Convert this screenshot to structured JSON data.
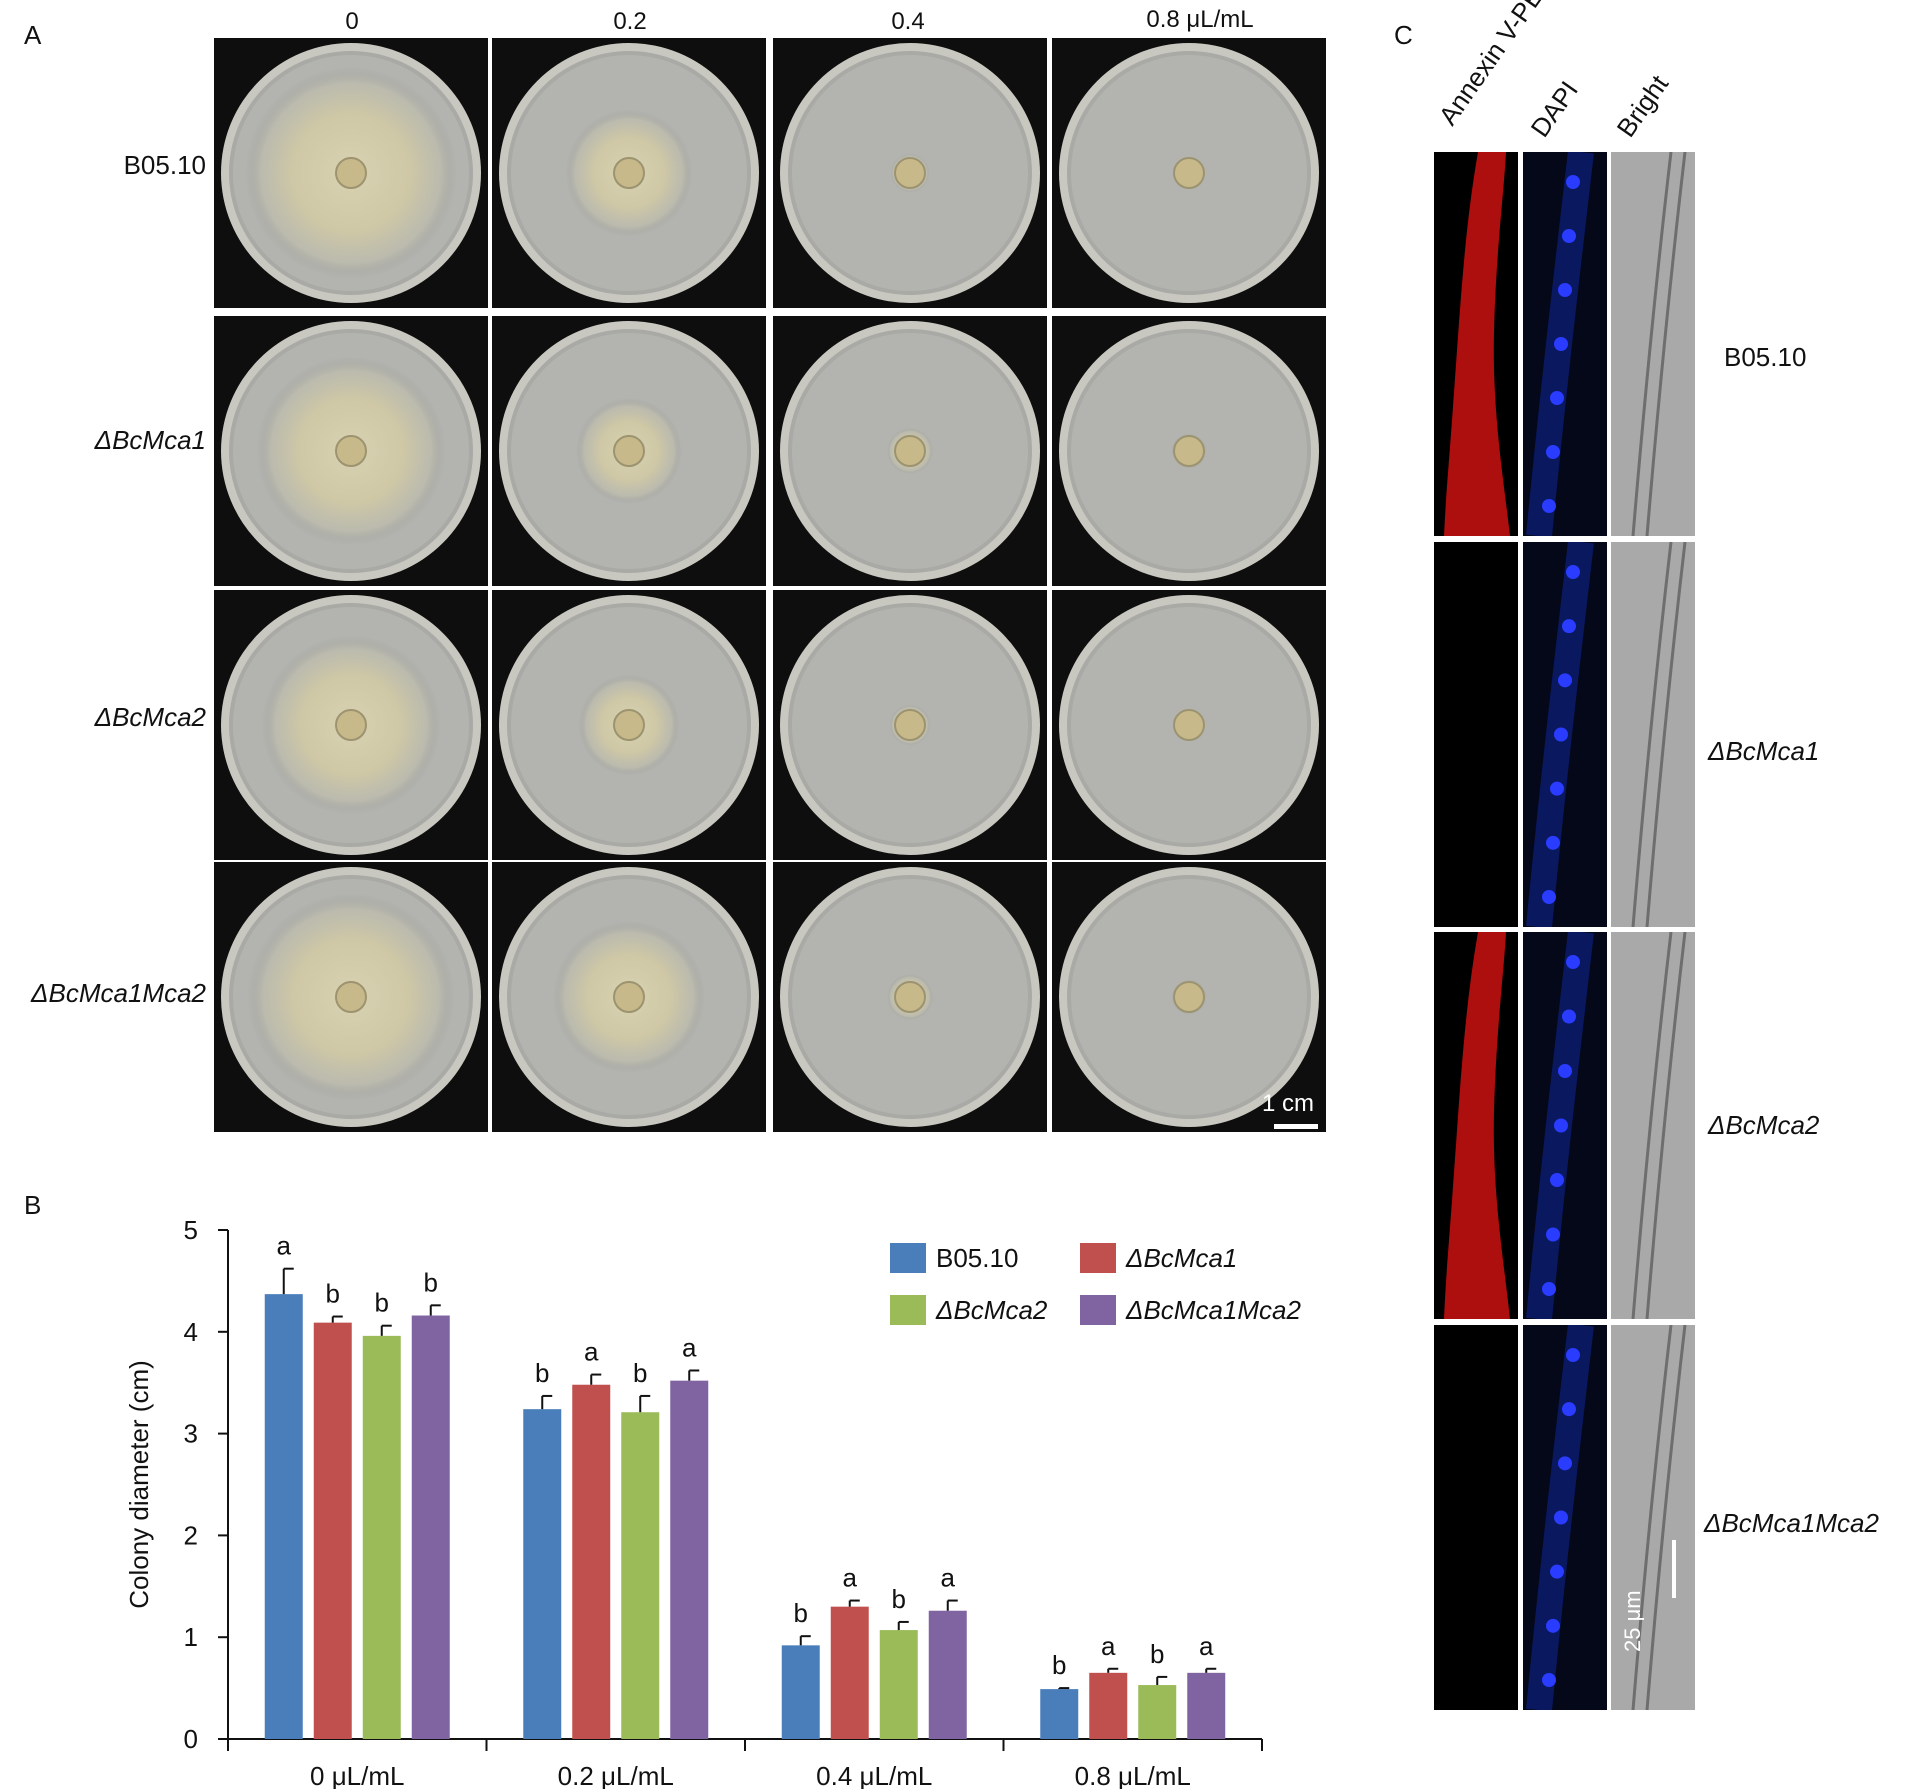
{
  "panel_labels": {
    "a": "A",
    "b": "B",
    "c": "C"
  },
  "panel_a": {
    "concentrations": [
      "0",
      "0.2",
      "0.4",
      "0.8 μL/mL"
    ],
    "strains": [
      "B05.10",
      "ΔBcMca1",
      "ΔBcMca2",
      "ΔBcMca1Mca2"
    ],
    "scale_bar": "1 cm",
    "colony_size": [
      [
        0.92,
        0.55,
        0.17,
        0.14
      ],
      [
        0.82,
        0.46,
        0.2,
        0.15
      ],
      [
        0.78,
        0.44,
        0.18,
        0.14
      ],
      [
        0.9,
        0.66,
        0.2,
        0.15
      ]
    ]
  },
  "chart_data": {
    "type": "bar",
    "title": "",
    "xlabel": "",
    "ylabel": "Colony diameter (cm)",
    "ylim": [
      0,
      5
    ],
    "yticks": [
      "0",
      "1",
      "2",
      "3",
      "4",
      "5"
    ],
    "categories": [
      "0 μL/mL",
      "0.2 μL/mL",
      "0.4 μL/mL",
      "0.8 μL/mL"
    ],
    "series": [
      {
        "name": "B05.10",
        "color": "#4a7ebb",
        "values": [
          4.37,
          3.24,
          0.92,
          0.49
        ],
        "errors": [
          0.25,
          0.13,
          0.09,
          0.01
        ],
        "letters": [
          "a",
          "b",
          "b",
          "b"
        ]
      },
      {
        "name": "ΔBcMca1",
        "color": "#c0504d",
        "values": [
          4.09,
          3.48,
          1.3,
          0.65
        ],
        "errors": [
          0.06,
          0.1,
          0.06,
          0.04
        ],
        "letters": [
          "b",
          "a",
          "a",
          "a"
        ]
      },
      {
        "name": "ΔBcMca2",
        "color": "#9bbb59",
        "values": [
          3.96,
          3.21,
          1.07,
          0.53
        ],
        "errors": [
          0.1,
          0.16,
          0.08,
          0.08
        ],
        "letters": [
          "b",
          "b",
          "b",
          "b"
        ]
      },
      {
        "name": "ΔBcMca1Mca2",
        "color": "#8064a2",
        "values": [
          4.16,
          3.52,
          1.26,
          0.65
        ],
        "errors": [
          0.1,
          0.1,
          0.1,
          0.04
        ],
        "letters": [
          "b",
          "a",
          "a",
          "a"
        ]
      }
    ],
    "grid": false,
    "legend_position": "top-right"
  },
  "panel_c": {
    "channels": [
      "Annexin V-PE",
      "DAPI",
      "Bright"
    ],
    "strains": [
      "B05.10",
      "ΔBcMca1",
      "ΔBcMca2",
      "ΔBcMca1Mca2"
    ],
    "annexin_positive": [
      true,
      false,
      true,
      false
    ],
    "scale_bar": "25 μm"
  }
}
